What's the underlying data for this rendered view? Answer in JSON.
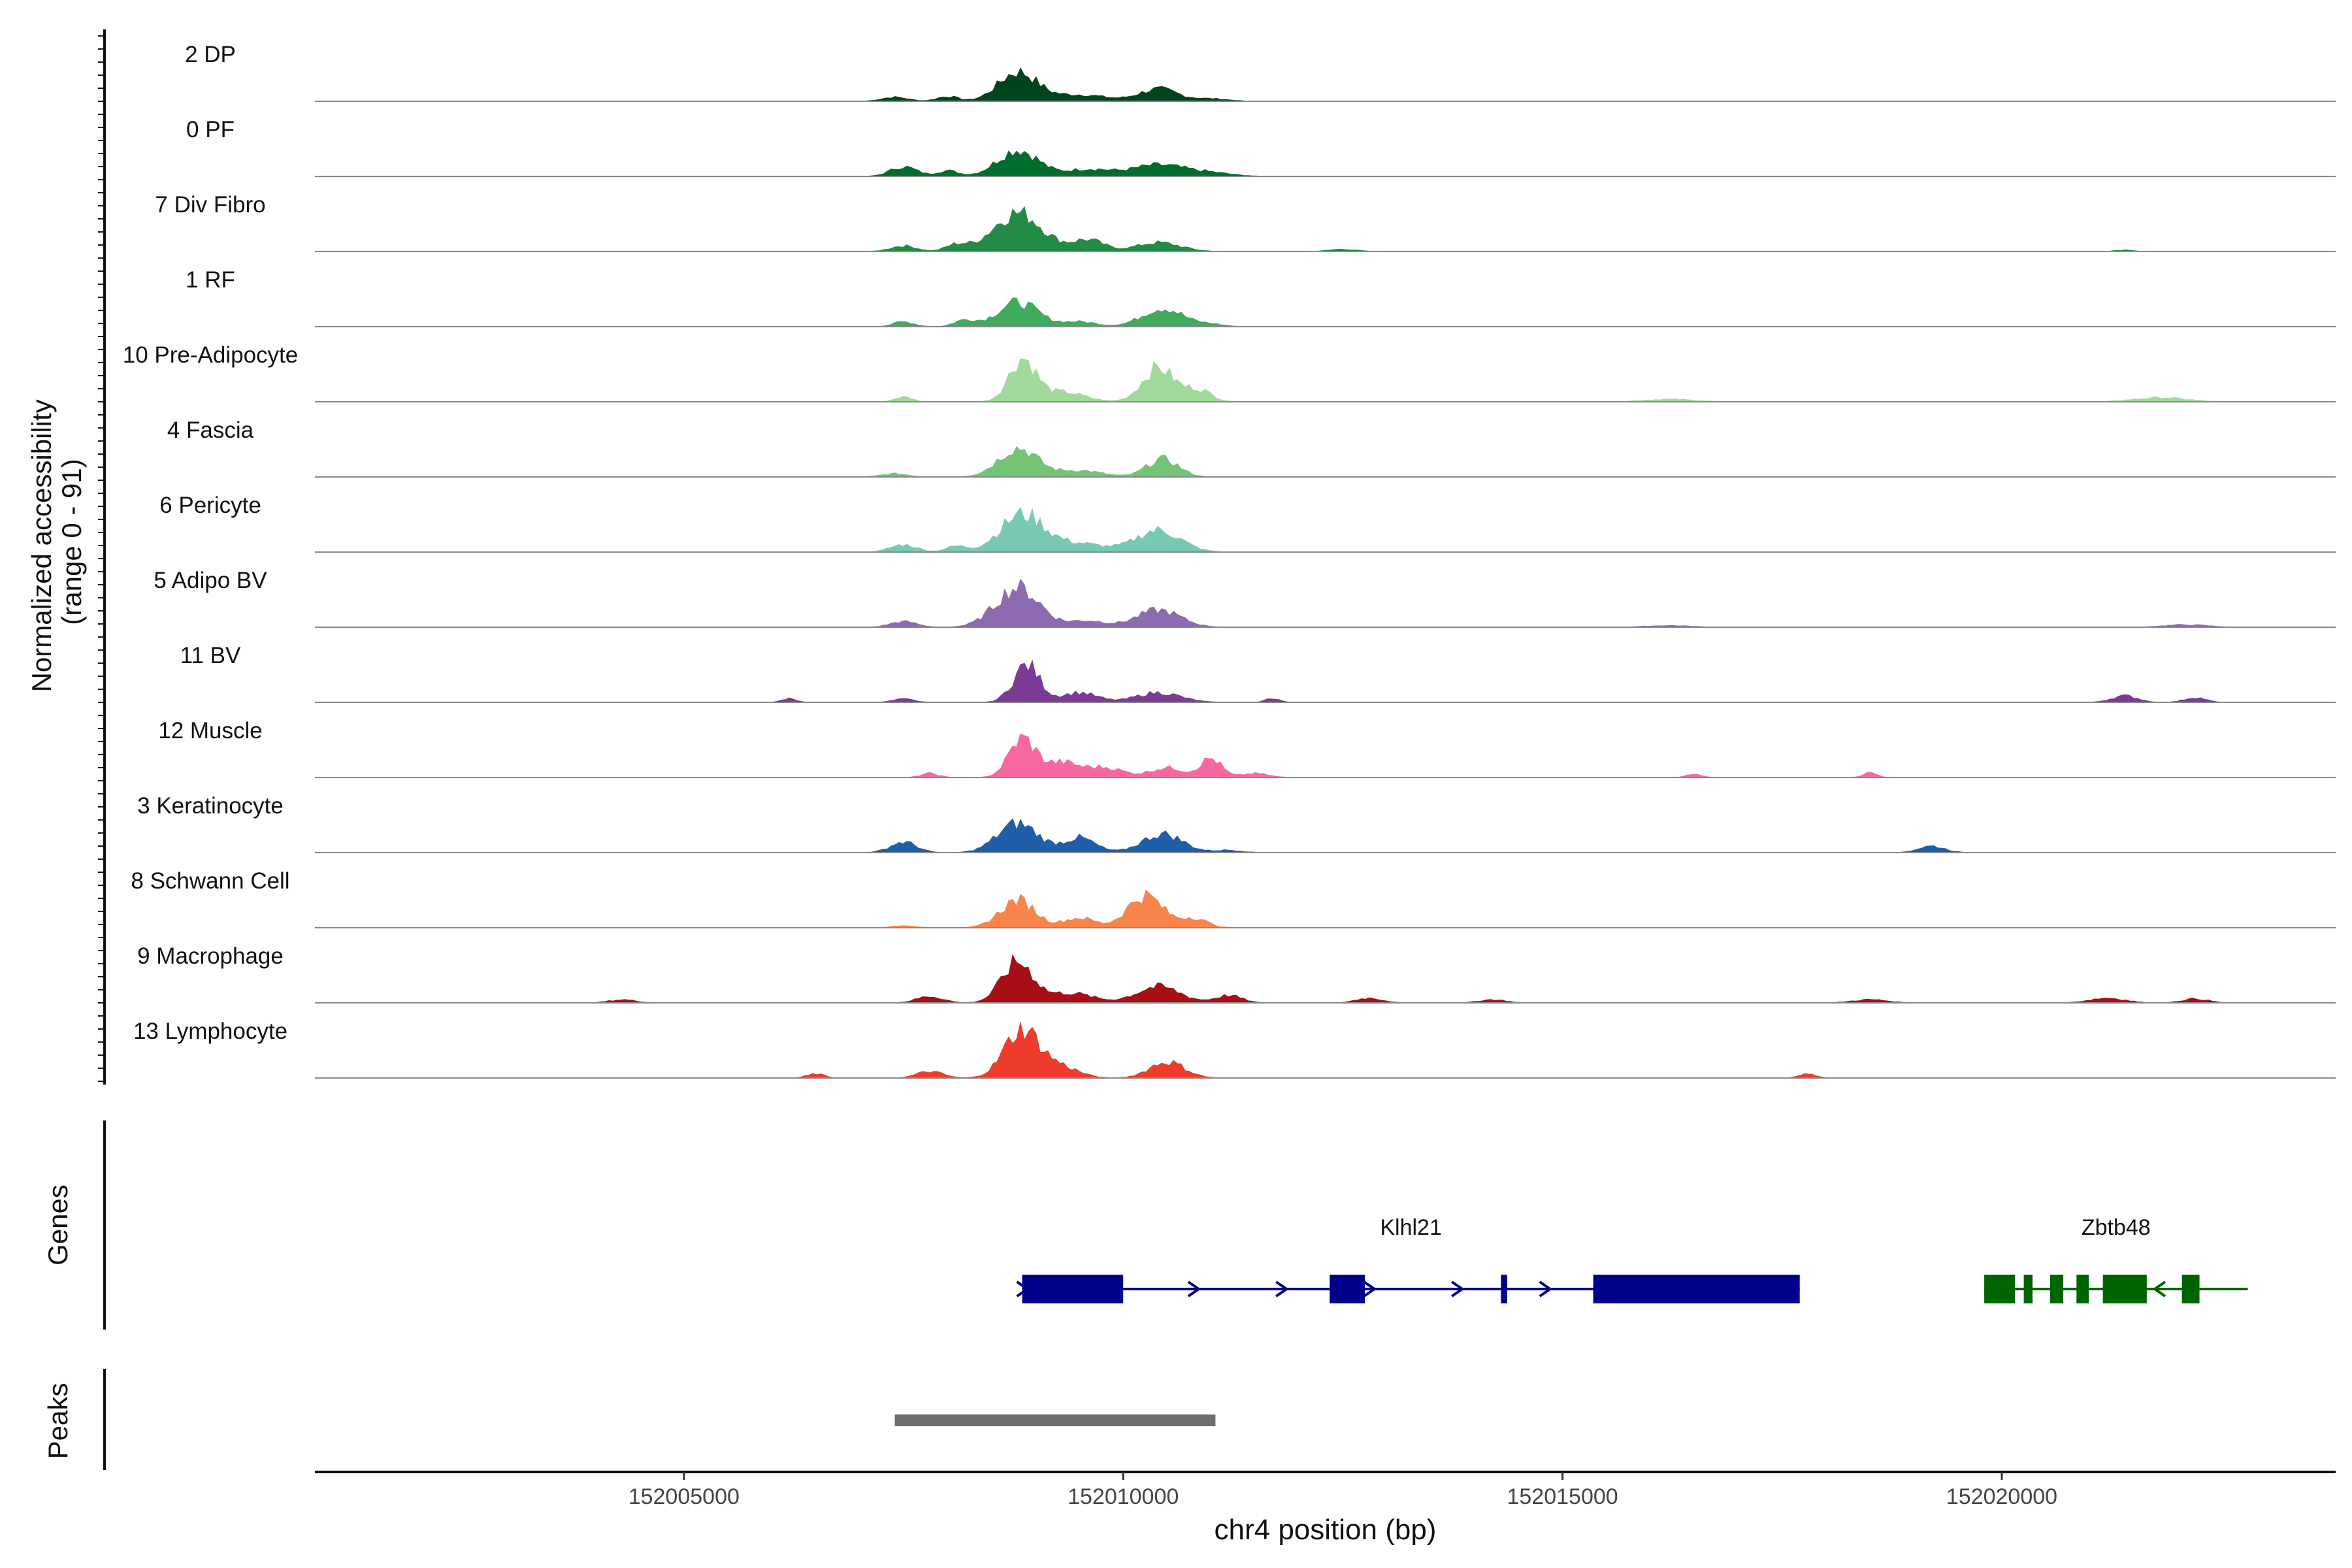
{
  "chart_data": {
    "type": "area",
    "title": "",
    "ylabel_line1": "Normalized accessibility",
    "ylabel_line2": "(range 0 - 91)",
    "yrange": [
      0,
      91
    ],
    "xlabel": "chr4 position (bp)",
    "xlim": [
      152000800,
      152023800
    ],
    "xticks": [
      152005000,
      152010000,
      152015000,
      152020000
    ],
    "xtick_labels": [
      "152005000",
      "152010000",
      "152015000",
      "152020000"
    ],
    "tracks": [
      {
        "name": "2 DP",
        "color": "#00441b",
        "peaks": [
          [
            152007400,
            5,
            150
          ],
          [
            152008000,
            6,
            120
          ],
          [
            152008800,
            36,
            220
          ],
          [
            152009500,
            8,
            300
          ],
          [
            152010400,
            15,
            220
          ],
          [
            152011000,
            3,
            200
          ]
        ]
      },
      {
        "name": "0 PF",
        "color": "#006d2c",
        "peaks": [
          [
            152007500,
            12,
            150
          ],
          [
            152008000,
            7,
            120
          ],
          [
            152008800,
            33,
            230
          ],
          [
            152009600,
            9,
            250
          ],
          [
            152010400,
            14,
            300
          ],
          [
            152011000,
            4,
            250
          ]
        ]
      },
      {
        "name": "7 Div Fibro",
        "color": "#238b45",
        "peaks": [
          [
            152007500,
            7,
            150
          ],
          [
            152008100,
            8,
            120
          ],
          [
            152008800,
            48,
            280
          ],
          [
            152009600,
            14,
            180
          ],
          [
            152010400,
            11,
            250
          ],
          [
            152012500,
            3,
            150
          ],
          [
            152021400,
            2,
            100
          ]
        ]
      },
      {
        "name": "1 RF",
        "color": "#41ab5d",
        "peaks": [
          [
            152007500,
            6,
            120
          ],
          [
            152008200,
            8,
            120
          ],
          [
            152008800,
            30,
            230
          ],
          [
            152009500,
            6,
            200
          ],
          [
            152010450,
            23,
            230
          ],
          [
            152011000,
            3,
            150
          ]
        ]
      },
      {
        "name": "10 Pre-Adipocyte",
        "color": "#a1d99b",
        "peaks": [
          [
            152008850,
            52,
            150
          ],
          [
            152009300,
            12,
            250
          ],
          [
            152010400,
            42,
            180
          ],
          [
            152010850,
            15,
            150
          ],
          [
            152007500,
            6,
            100
          ],
          [
            152016200,
            3,
            300
          ],
          [
            152021800,
            5,
            300
          ]
        ]
      },
      {
        "name": "4 Fascia",
        "color": "#74c476",
        "peaks": [
          [
            152008800,
            36,
            220
          ],
          [
            152009500,
            8,
            250
          ],
          [
            152010450,
            22,
            180
          ],
          [
            152007400,
            4,
            150
          ]
        ]
      },
      {
        "name": "6 Pericyte",
        "color": "#78c9b4",
        "peaks": [
          [
            152007500,
            9,
            150
          ],
          [
            152008100,
            7,
            120
          ],
          [
            152008850,
            46,
            250
          ],
          [
            152009500,
            10,
            300
          ],
          [
            152010400,
            27,
            250
          ]
        ]
      },
      {
        "name": "5 Adipo BV",
        "color": "#8c6bb1",
        "peaks": [
          [
            152007500,
            7,
            150
          ],
          [
            152008800,
            49,
            250
          ],
          [
            152009600,
            8,
            200
          ],
          [
            152010400,
            21,
            250
          ],
          [
            152016200,
            2,
            250
          ],
          [
            152022100,
            3,
            250
          ]
        ]
      },
      {
        "name": "11 BV",
        "color": "#7a3a96",
        "peaks": [
          [
            152006200,
            5,
            80
          ],
          [
            152007500,
            4,
            120
          ],
          [
            152008900,
            46,
            150
          ],
          [
            152009500,
            12,
            200
          ],
          [
            152010400,
            12,
            250
          ],
          [
            152011700,
            5,
            80
          ],
          [
            152021400,
            8,
            150
          ],
          [
            152022200,
            6,
            120
          ]
        ]
      },
      {
        "name": "12 Muscle",
        "color": "#f768a1",
        "peaks": [
          [
            152008850,
            47,
            150
          ],
          [
            152009300,
            18,
            200
          ],
          [
            152009800,
            12,
            200
          ],
          [
            152010500,
            12,
            200
          ],
          [
            152011000,
            23,
            120
          ],
          [
            152011500,
            5,
            150
          ],
          [
            152007800,
            5,
            100
          ],
          [
            152016500,
            5,
            80
          ],
          [
            152018500,
            6,
            80
          ]
        ]
      },
      {
        "name": "3 Keratinocyte",
        "color": "#1f5fa8",
        "peaks": [
          [
            152007500,
            13,
            150
          ],
          [
            152008800,
            36,
            230
          ],
          [
            152009500,
            18,
            180
          ],
          [
            152010450,
            23,
            230
          ],
          [
            152019200,
            8,
            150
          ],
          [
            152011200,
            3,
            150
          ]
        ]
      },
      {
        "name": "8 Schwann Cell",
        "color": "#f7844a",
        "peaks": [
          [
            152008800,
            34,
            200
          ],
          [
            152009500,
            12,
            180
          ],
          [
            152010250,
            40,
            200
          ],
          [
            152010800,
            12,
            150
          ],
          [
            152007500,
            3,
            120
          ]
        ]
      },
      {
        "name": "9 Macrophage",
        "color": "#a50f15",
        "peaks": [
          [
            152008800,
            50,
            180
          ],
          [
            152009400,
            12,
            250
          ],
          [
            152010400,
            20,
            250
          ],
          [
            152011200,
            9,
            150
          ],
          [
            152007800,
            8,
            150
          ],
          [
            152004300,
            4,
            150
          ],
          [
            152012800,
            6,
            150
          ],
          [
            152014200,
            4,
            150
          ],
          [
            152018500,
            4,
            200
          ],
          [
            152021200,
            6,
            200
          ],
          [
            152022200,
            5,
            150
          ]
        ]
      },
      {
        "name": "13 Lymphocyte",
        "color": "#ef3b2c",
        "peaks": [
          [
            152008850,
            60,
            200
          ],
          [
            152009300,
            13,
            200
          ],
          [
            152010500,
            20,
            200
          ],
          [
            152007800,
            8,
            150
          ],
          [
            152006500,
            5,
            100
          ],
          [
            152017800,
            5,
            100
          ]
        ]
      }
    ],
    "genes_label": "Genes",
    "genes": [
      {
        "name": "Klhl21",
        "color": "#00008b",
        "strand": "+",
        "start": 152008850,
        "end": 152017700,
        "exons": [
          [
            152008850,
            152010000
          ],
          [
            152012350,
            152012750
          ],
          [
            152014300,
            152014370
          ],
          [
            152015350,
            152017700
          ]
        ],
        "arrows": [
          152008850,
          152010800,
          152011800,
          152012800,
          152013800,
          152014800
        ]
      },
      {
        "name": "Zbtb48",
        "color": "#006400",
        "strand": "-",
        "start": 152019800,
        "end": 152022800,
        "exons": [
          [
            152019800,
            152020150
          ],
          [
            152020250,
            152020350
          ],
          [
            152020550,
            152020700
          ],
          [
            152020850,
            152020990
          ],
          [
            152021150,
            152021650
          ],
          [
            152022050,
            152022250
          ]
        ],
        "arrows": [
          152021800
        ]
      }
    ],
    "peaks_label": "Peaks",
    "peak_regions": [
      [
        152007400,
        152011050
      ]
    ]
  }
}
